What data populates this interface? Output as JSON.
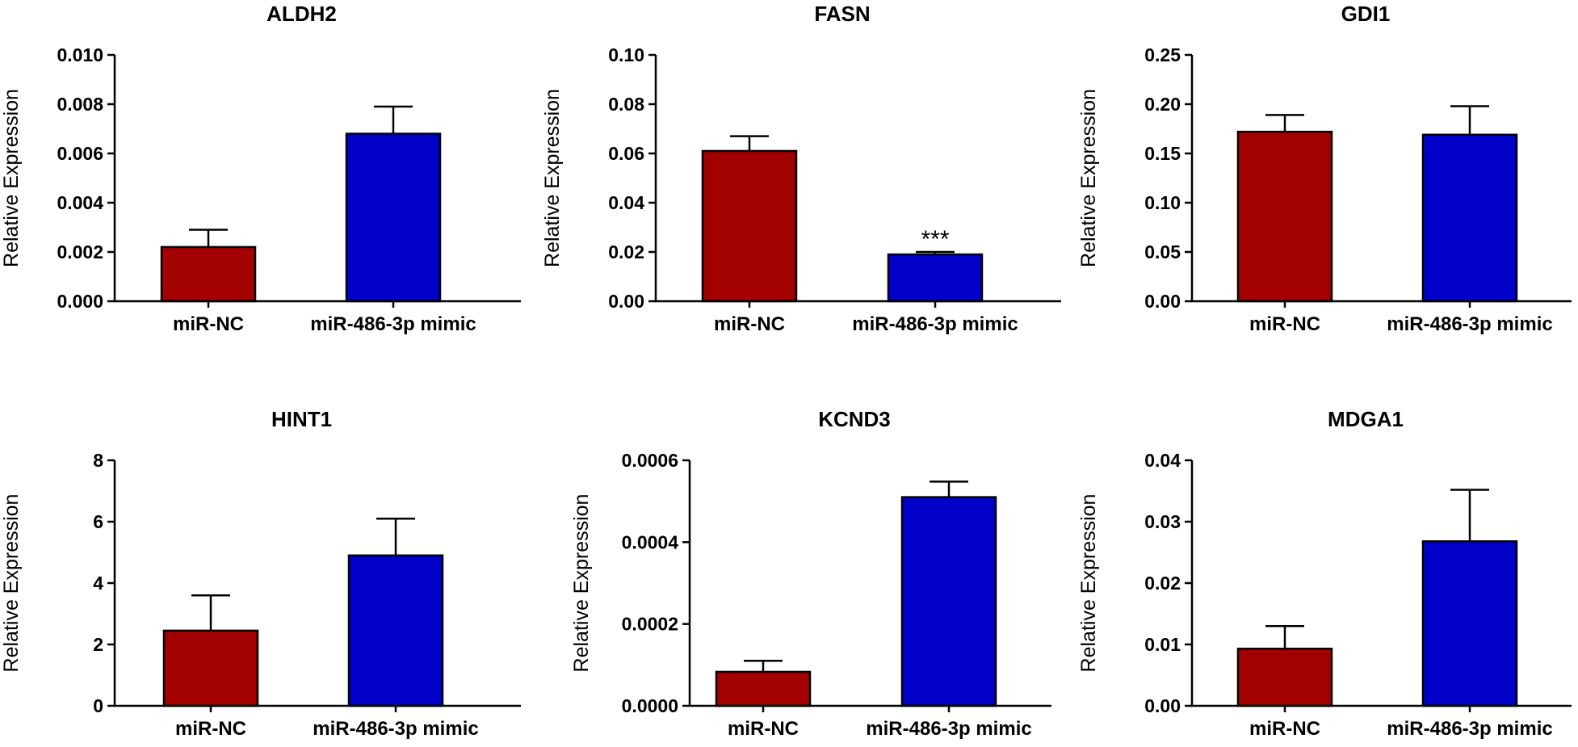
{
  "figure": {
    "colors": {
      "miR-NC": "#a30000",
      "miR-486-3p mimic": "#0000c8",
      "axis": "#000000"
    }
  },
  "chart_data": [
    {
      "type": "bar",
      "title": "ALDH2",
      "ylabel": "Relative Expression",
      "categories": [
        "miR-NC",
        "miR-486-3p mimic"
      ],
      "values": [
        0.0022,
        0.0068
      ],
      "errors": [
        0.0007,
        0.0011
      ],
      "ylim": [
        0,
        0.01
      ],
      "yticks": [
        "0.000",
        "0.002",
        "0.004",
        "0.006",
        "0.008",
        "0.010"
      ],
      "annotations": [
        "",
        ""
      ]
    },
    {
      "type": "bar",
      "title": "FASN",
      "ylabel": "Relative Expression",
      "categories": [
        "miR-NC",
        "miR-486-3p mimic"
      ],
      "values": [
        0.061,
        0.019
      ],
      "errors": [
        0.006,
        0.001
      ],
      "ylim": [
        0,
        0.1
      ],
      "yticks": [
        "0.00",
        "0.02",
        "0.04",
        "0.06",
        "0.08",
        "0.10"
      ],
      "annotations": [
        "",
        "***"
      ]
    },
    {
      "type": "bar",
      "title": "GDI1",
      "ylabel": "Relative Expression",
      "categories": [
        "miR-NC",
        "miR-486-3p mimic"
      ],
      "values": [
        0.172,
        0.169
      ],
      "errors": [
        0.017,
        0.029
      ],
      "ylim": [
        0,
        0.25
      ],
      "yticks": [
        "0.00",
        "0.05",
        "0.10",
        "0.15",
        "0.20",
        "0.25"
      ],
      "annotations": [
        "",
        ""
      ]
    },
    {
      "type": "bar",
      "title": "HINT1",
      "ylabel": "Relative Expression",
      "categories": [
        "miR-NC",
        "miR-486-3p mimic"
      ],
      "values": [
        2.45,
        4.9
      ],
      "errors": [
        1.15,
        1.2
      ],
      "ylim": [
        0,
        8
      ],
      "yticks": [
        "0",
        "2",
        "4",
        "6",
        "8"
      ],
      "annotations": [
        "",
        ""
      ]
    },
    {
      "type": "bar",
      "title": "KCND3",
      "ylabel": "Relative Expression",
      "categories": [
        "miR-NC",
        "miR-486-3p mimic"
      ],
      "values": [
        8.3e-05,
        0.00051
      ],
      "errors": [
        2.7e-05,
        3.8e-05
      ],
      "ylim": [
        0,
        0.0006
      ],
      "yticks": [
        "0.0000",
        "0.0002",
        "0.0004",
        "0.0006"
      ],
      "annotations": [
        "",
        ""
      ]
    },
    {
      "type": "bar",
      "title": "MDGA1",
      "ylabel": "Relative Expression",
      "categories": [
        "miR-NC",
        "miR-486-3p mimic"
      ],
      "values": [
        0.0093,
        0.0268
      ],
      "errors": [
        0.0037,
        0.0084
      ],
      "ylim": [
        0,
        0.04
      ],
      "yticks": [
        "0.00",
        "0.01",
        "0.02",
        "0.03",
        "0.04"
      ],
      "annotations": [
        "",
        ""
      ]
    }
  ]
}
